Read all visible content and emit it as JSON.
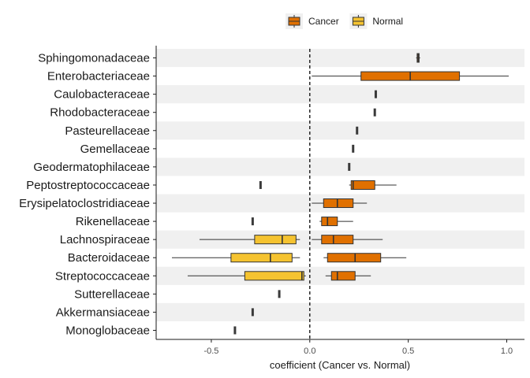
{
  "chart_data": {
    "type": "boxplot",
    "orientation": "horizontal",
    "xlabel": "coefficient (Cancer vs. Normal)",
    "xlim": [
      -0.78,
      1.09
    ],
    "xticks": [
      -0.5,
      0.0,
      0.5,
      1.0
    ],
    "xtick_labels": [
      "-0.5",
      "0.0",
      "0.5",
      "1.0"
    ],
    "reference_line": {
      "x": 0,
      "style": "dashed"
    },
    "legend": {
      "position": "top",
      "entries": [
        {
          "key": "Cancer",
          "label": "Cancer",
          "color": "#E07000"
        },
        {
          "key": "Normal",
          "label": "Normal",
          "color": "#F5C330"
        }
      ]
    },
    "stripes": true,
    "categories": [
      "Sphingomonadaceae",
      "Enterobacteriaceae",
      "Caulobacteraceae",
      "Rhodobacteraceae",
      "Pasteurellaceae",
      "Gemellaceae",
      "Geodermatophilaceae",
      "Peptostreptococcaceae",
      "Erysipelatoclostridiaceae",
      "Rikenellaceae",
      "Lachnospiraceae",
      "Bacteroidaceae",
      "Streptococcaceae",
      "Sutterellaceae",
      "Akkermansiaceae",
      "Monoglobaceae"
    ],
    "series": [
      {
        "name": "Cancer",
        "color": "#E07000",
        "boxes": [
          {
            "category": "Sphingomonadaceae",
            "min": 0.54,
            "q1": 0.545,
            "median": 0.55,
            "q3": 0.555,
            "max": 0.56
          },
          {
            "category": "Enterobacteriaceae",
            "min": 0.01,
            "q1": 0.26,
            "median": 0.51,
            "q3": 0.76,
            "max": 1.01
          },
          {
            "category": "Caulobacteraceae",
            "min": 0.335,
            "q1": 0.335,
            "median": 0.335,
            "q3": 0.335,
            "max": 0.335
          },
          {
            "category": "Rhodobacteraceae",
            "min": 0.33,
            "q1": 0.33,
            "median": 0.33,
            "q3": 0.33,
            "max": 0.33
          },
          {
            "category": "Pasteurellaceae",
            "min": 0.24,
            "q1": 0.24,
            "median": 0.24,
            "q3": 0.24,
            "max": 0.24
          },
          {
            "category": "Gemellaceae",
            "min": 0.22,
            "q1": 0.22,
            "median": 0.22,
            "q3": 0.22,
            "max": 0.22
          },
          {
            "category": "Geodermatophilaceae",
            "min": 0.2,
            "q1": 0.2,
            "median": 0.2,
            "q3": 0.2,
            "max": 0.2
          },
          {
            "category": "Peptostreptococcaceae",
            "min": 0.2,
            "q1": 0.21,
            "median": 0.22,
            "q3": 0.33,
            "max": 0.44
          },
          {
            "category": "Erysipelatoclostridiaceae",
            "min": 0.01,
            "q1": 0.07,
            "median": 0.14,
            "q3": 0.22,
            "max": 0.29
          },
          {
            "category": "Rikenellaceae",
            "min": 0.05,
            "q1": 0.06,
            "median": 0.09,
            "q3": 0.14,
            "max": 0.22
          },
          {
            "category": "Lachnospiraceae",
            "min": 0.01,
            "q1": 0.06,
            "median": 0.12,
            "q3": 0.22,
            "max": 0.37
          },
          {
            "category": "Bacteroidaceae",
            "min": 0.07,
            "q1": 0.09,
            "median": 0.23,
            "q3": 0.36,
            "max": 0.49
          },
          {
            "category": "Streptococcaceae",
            "min": 0.08,
            "q1": 0.11,
            "median": 0.14,
            "q3": 0.23,
            "max": 0.31
          }
        ]
      },
      {
        "name": "Normal",
        "color": "#F5C330",
        "boxes": [
          {
            "category": "Peptostreptococcaceae",
            "min": -0.25,
            "q1": -0.25,
            "median": -0.25,
            "q3": -0.25,
            "max": -0.25
          },
          {
            "category": "Rikenellaceae",
            "min": -0.29,
            "q1": -0.29,
            "median": -0.29,
            "q3": -0.29,
            "max": -0.29
          },
          {
            "category": "Lachnospiraceae",
            "min": -0.56,
            "q1": -0.28,
            "median": -0.14,
            "q3": -0.07,
            "max": -0.05
          },
          {
            "category": "Bacteroidaceae",
            "min": -0.7,
            "q1": -0.4,
            "median": -0.2,
            "q3": -0.09,
            "max": -0.05
          },
          {
            "category": "Streptococcaceae",
            "min": -0.62,
            "q1": -0.33,
            "median": -0.04,
            "q3": -0.03,
            "max": -0.02
          },
          {
            "category": "Sutterellaceae",
            "min": -0.155,
            "q1": -0.155,
            "median": -0.155,
            "q3": -0.155,
            "max": -0.155
          },
          {
            "category": "Akkermansiaceae",
            "min": -0.29,
            "q1": -0.29,
            "median": -0.29,
            "q3": -0.29,
            "max": -0.29
          },
          {
            "category": "Monoglobaceae",
            "min": -0.38,
            "q1": -0.38,
            "median": -0.38,
            "q3": -0.38,
            "max": -0.38
          }
        ]
      }
    ]
  }
}
